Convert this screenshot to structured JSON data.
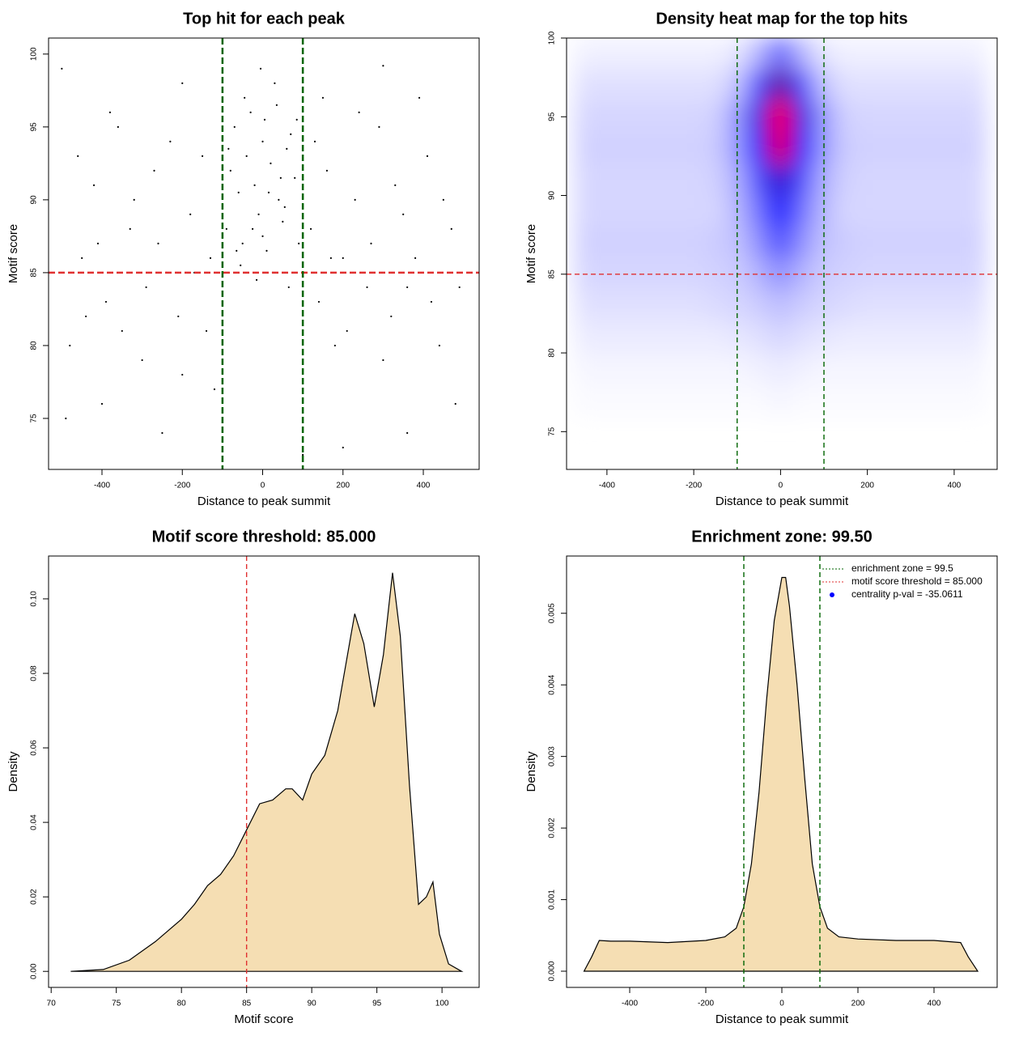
{
  "chart_data": [
    {
      "type": "scatter",
      "title": "Top hit for each peak",
      "xlabel": "Distance to peak summit",
      "ylabel": "Motif score",
      "xlim": [
        -533,
        539
      ],
      "ylim": [
        71.5,
        101.1
      ],
      "xticks": [
        -400,
        -200,
        0,
        200,
        400
      ],
      "yticks": [
        75,
        80,
        85,
        90,
        95,
        100
      ],
      "color": "#000000",
      "x": [
        -80,
        -60,
        -40,
        -20,
        0,
        20,
        40,
        60,
        80,
        -90,
        -50,
        -10,
        10,
        50,
        90,
        -70,
        -30,
        5,
        35,
        70,
        -55,
        -15,
        25,
        65,
        -85,
        -25,
        15,
        45,
        85,
        -45,
        30,
        -5,
        55,
        -65,
        0,
        -480,
        -450,
        -420,
        -390,
        -360,
        -330,
        -300,
        -270,
        -240,
        -210,
        -180,
        -150,
        -130,
        -120,
        -460,
        -440,
        -410,
        -380,
        -350,
        -320,
        -290,
        -260,
        -230,
        -200,
        -170,
        -140,
        -490,
        -400,
        -250,
        120,
        140,
        160,
        180,
        200,
        230,
        260,
        290,
        320,
        350,
        380,
        410,
        440,
        470,
        490,
        130,
        170,
        210,
        240,
        270,
        300,
        330,
        360,
        390,
        420,
        450,
        480,
        200,
        360,
        -500,
        300,
        -200,
        150,
        -100,
        100
      ],
      "y": [
        92,
        90.5,
        93,
        91,
        94,
        92.5,
        90,
        93.5,
        91.5,
        88,
        87,
        89,
        86.5,
        88.5,
        87,
        95,
        96,
        95.5,
        96.5,
        94.5,
        85.5,
        84.5,
        85,
        84,
        93.5,
        88,
        90.5,
        91.5,
        95.5,
        97,
        98,
        99,
        89.5,
        86.5,
        87.5,
        80,
        86,
        91,
        83,
        95,
        88,
        79,
        92,
        85,
        82,
        89,
        93,
        86,
        77,
        93,
        82,
        87,
        96,
        81,
        90,
        84,
        87,
        94,
        78,
        85,
        81,
        75,
        76,
        74,
        88,
        83,
        92,
        80,
        86,
        90,
        84,
        95,
        82,
        89,
        86,
        93,
        80,
        88,
        84,
        94,
        86,
        81,
        96,
        87,
        79,
        91,
        84,
        97,
        83,
        90,
        76,
        73,
        74,
        99,
        99.2,
        98,
        97,
        73,
        72.5
      ],
      "hlines": [
        {
          "value": 85,
          "color": "#e03030"
        }
      ],
      "vlines": [
        {
          "value": -100,
          "color": "#006400"
        },
        {
          "value": 100,
          "color": "#006400"
        }
      ]
    },
    {
      "type": "heatmap",
      "title": "Density heat map for the top hits",
      "xlabel": "Distance to peak summit",
      "ylabel": "Motif score",
      "xlim": [
        -493,
        499
      ],
      "ylim": [
        72.6,
        100
      ],
      "xticks": [
        -400,
        -200,
        0,
        200,
        400
      ],
      "yticks": [
        75,
        80,
        85,
        90,
        95,
        100
      ],
      "colors": [
        "#ffffff",
        "#0000ff",
        "#ff0000"
      ],
      "x": [
        -450,
        -400,
        -350,
        -300,
        -250,
        -200,
        -150,
        -100,
        -50,
        0,
        50,
        100,
        150,
        200,
        250,
        300,
        350,
        400,
        450
      ],
      "y": [
        99,
        97,
        95,
        93,
        91,
        89,
        87,
        85,
        83,
        81,
        79,
        77
      ],
      "z": [
        [
          0.03,
          0.03,
          0.03,
          0.03,
          0.03,
          0.03,
          0.03,
          0.05,
          0.15,
          0.3,
          0.15,
          0.05,
          0.03,
          0.03,
          0.03,
          0.03,
          0.03,
          0.03,
          0.03
        ],
        [
          0.06,
          0.06,
          0.06,
          0.06,
          0.06,
          0.06,
          0.06,
          0.12,
          0.35,
          0.7,
          0.35,
          0.12,
          0.06,
          0.06,
          0.06,
          0.06,
          0.06,
          0.06,
          0.06
        ],
        [
          0.08,
          0.08,
          0.08,
          0.08,
          0.08,
          0.08,
          0.09,
          0.2,
          0.55,
          1.0,
          0.55,
          0.2,
          0.09,
          0.08,
          0.08,
          0.08,
          0.08,
          0.08,
          0.08
        ],
        [
          0.09,
          0.09,
          0.09,
          0.09,
          0.09,
          0.09,
          0.1,
          0.2,
          0.5,
          0.95,
          0.5,
          0.2,
          0.1,
          0.09,
          0.09,
          0.09,
          0.09,
          0.09,
          0.09
        ],
        [
          0.08,
          0.08,
          0.08,
          0.08,
          0.08,
          0.08,
          0.09,
          0.16,
          0.35,
          0.6,
          0.35,
          0.16,
          0.09,
          0.08,
          0.08,
          0.08,
          0.08,
          0.08,
          0.08
        ],
        [
          0.08,
          0.08,
          0.08,
          0.08,
          0.08,
          0.08,
          0.08,
          0.14,
          0.28,
          0.48,
          0.28,
          0.14,
          0.08,
          0.08,
          0.08,
          0.08,
          0.08,
          0.08,
          0.08
        ],
        [
          0.09,
          0.09,
          0.09,
          0.09,
          0.09,
          0.09,
          0.1,
          0.12,
          0.22,
          0.35,
          0.22,
          0.12,
          0.1,
          0.09,
          0.09,
          0.09,
          0.09,
          0.09,
          0.09
        ],
        [
          0.08,
          0.08,
          0.08,
          0.08,
          0.08,
          0.08,
          0.09,
          0.1,
          0.15,
          0.22,
          0.15,
          0.1,
          0.09,
          0.08,
          0.08,
          0.08,
          0.08,
          0.08,
          0.08
        ],
        [
          0.06,
          0.06,
          0.06,
          0.06,
          0.06,
          0.06,
          0.07,
          0.08,
          0.1,
          0.13,
          0.1,
          0.08,
          0.07,
          0.06,
          0.06,
          0.06,
          0.06,
          0.06,
          0.06
        ],
        [
          0.04,
          0.04,
          0.04,
          0.04,
          0.04,
          0.04,
          0.04,
          0.05,
          0.06,
          0.08,
          0.06,
          0.05,
          0.04,
          0.04,
          0.04,
          0.04,
          0.04,
          0.04,
          0.04
        ],
        [
          0.02,
          0.02,
          0.02,
          0.02,
          0.02,
          0.02,
          0.02,
          0.02,
          0.03,
          0.04,
          0.03,
          0.02,
          0.02,
          0.02,
          0.02,
          0.02,
          0.02,
          0.02,
          0.02
        ],
        [
          0.01,
          0.01,
          0.01,
          0.01,
          0.01,
          0.01,
          0.01,
          0.01,
          0.01,
          0.02,
          0.01,
          0.01,
          0.01,
          0.01,
          0.01,
          0.01,
          0.01,
          0.01,
          0.01
        ]
      ],
      "hlines": [
        {
          "value": 85,
          "color": "#e03030"
        }
      ],
      "vlines": [
        {
          "value": -100,
          "color": "#006400"
        },
        {
          "value": 100,
          "color": "#006400"
        }
      ]
    },
    {
      "type": "density",
      "title": "Motif score threshold: 85.000",
      "xlabel": "Motif score",
      "ylabel": "Density",
      "xlim": [
        69.8,
        102.85
      ],
      "ylim": [
        -0.0043,
        0.1115
      ],
      "xticks": [
        70,
        75,
        80,
        85,
        90,
        95,
        100
      ],
      "yticks": [
        {
          "value": 0,
          "label": "0.00"
        },
        {
          "value": 0.02,
          "label": "0.02"
        },
        {
          "value": 0.04,
          "label": "0.04"
        },
        {
          "value": 0.06,
          "label": "0.06"
        },
        {
          "value": 0.08,
          "label": "0.08"
        },
        {
          "value": 0.1,
          "label": "0.10"
        }
      ],
      "color": "#f5deb3",
      "x": [
        71.5,
        74,
        76,
        78,
        80,
        81,
        82,
        83,
        84,
        85,
        86,
        87,
        88,
        88.5,
        89.3,
        90,
        91,
        92,
        93,
        93.3,
        94,
        94.8,
        95.5,
        96.2,
        96.8,
        97.5,
        98.2,
        98.8,
        99.3,
        99.8,
        100.5,
        101.5
      ],
      "y": [
        0,
        0.0005,
        0.003,
        0.008,
        0.014,
        0.018,
        0.023,
        0.026,
        0.031,
        0.038,
        0.045,
        0.046,
        0.049,
        0.049,
        0.046,
        0.053,
        0.058,
        0.07,
        0.09,
        0.096,
        0.088,
        0.071,
        0.085,
        0.107,
        0.09,
        0.05,
        0.018,
        0.02,
        0.024,
        0.01,
        0.002,
        0
      ],
      "vlines": [
        {
          "value": 85,
          "color": "#e03030"
        }
      ]
    },
    {
      "type": "density",
      "title": "Enrichment zone: 99.50",
      "xlabel": "Distance to peak summit",
      "ylabel": "Density",
      "xlim": [
        -566,
        566
      ],
      "ylim": [
        -0.000226,
        0.0058
      ],
      "xticks": [
        -400,
        -200,
        0,
        200,
        400
      ],
      "yticks": [
        {
          "value": 0,
          "label": "0.000"
        },
        {
          "value": 0.001,
          "label": "0.001"
        },
        {
          "value": 0.002,
          "label": "0.002"
        },
        {
          "value": 0.003,
          "label": "0.003"
        },
        {
          "value": 0.004,
          "label": "0.004"
        },
        {
          "value": 0.005,
          "label": "0.005"
        }
      ],
      "color": "#f5deb3",
      "x": [
        -520,
        -500,
        -480,
        -450,
        -400,
        -300,
        -200,
        -150,
        -120,
        -100,
        -80,
        -60,
        -40,
        -20,
        0,
        10,
        20,
        40,
        60,
        80,
        100,
        120,
        150,
        200,
        300,
        400,
        470,
        490,
        515
      ],
      "y": [
        0,
        0.0002,
        0.00043,
        0.00042,
        0.00042,
        0.0004,
        0.00043,
        0.00048,
        0.0006,
        0.0009,
        0.0015,
        0.0025,
        0.0038,
        0.0049,
        0.0055,
        0.0055,
        0.0051,
        0.004,
        0.0027,
        0.0015,
        0.0009,
        0.0006,
        0.00048,
        0.00045,
        0.00043,
        0.00043,
        0.0004,
        0.0002,
        0
      ],
      "vlines": [
        {
          "value": -100,
          "color": "#006400"
        },
        {
          "value": 100,
          "color": "#006400"
        }
      ],
      "legend_position": "top-right",
      "legend": [
        {
          "name": "enrichment zone = 99.5",
          "color": "#006400",
          "style": "line"
        },
        {
          "name": "motif score threshold = 85.000",
          "color": "#e03030",
          "style": "line"
        },
        {
          "name": "centrality p-val = -35.0611",
          "color": "#0000ff",
          "style": "point"
        }
      ]
    }
  ]
}
